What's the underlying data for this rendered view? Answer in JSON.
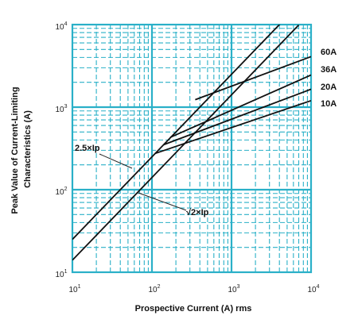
{
  "chart_data": {
    "type": "line",
    "x_scale": "log",
    "y_scale": "log",
    "xlim": [
      10,
      10000
    ],
    "ylim": [
      10,
      10000
    ],
    "xlabel": "Prospective Current (A) rms",
    "ylabel": "Peak Value of Current-Limiting Characteristics (A)",
    "ylabel_lines": [
      "Peak Value of Current-Limiting",
      "Characteristics (A)"
    ],
    "x_ticks": [
      {
        "base": "10",
        "exp": "1"
      },
      {
        "base": "10",
        "exp": "2"
      },
      {
        "base": "10",
        "exp": "3"
      },
      {
        "base": "10",
        "exp": "4"
      }
    ],
    "y_ticks": [
      {
        "base": "10",
        "exp": "1"
      },
      {
        "base": "10",
        "exp": "2"
      },
      {
        "base": "10",
        "exp": "3"
      },
      {
        "base": "10",
        "exp": "4"
      }
    ],
    "grid": true,
    "grid_color": "#2ab0c8",
    "line_color": "#111111",
    "reference_lines": [
      {
        "label": "2.5×Ip",
        "x": [
          10,
          5100
        ],
        "y": [
          25,
          12750
        ]
      },
      {
        "label": "√2×Ip",
        "x": [
          10,
          7000
        ],
        "y": [
          14,
          9900
        ]
      }
    ],
    "series": [
      {
        "name": "60A",
        "x": [
          350,
          10000
        ],
        "y": [
          1230,
          4100
        ]
      },
      {
        "name": "36A",
        "x": [
          170,
          10000
        ],
        "y": [
          430,
          2450
        ]
      },
      {
        "name": "20A",
        "x": [
          140,
          10000
        ],
        "y": [
          350,
          1650
        ]
      },
      {
        "name": "10A",
        "x": [
          110,
          10000
        ],
        "y": [
          275,
          1200
        ]
      }
    ]
  }
}
